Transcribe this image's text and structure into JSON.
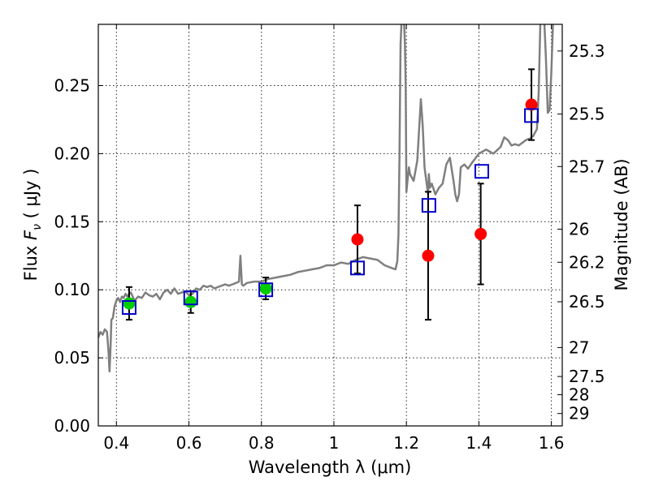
{
  "chart_data": {
    "type": "scatter",
    "title": "",
    "xlabel": "Wavelength  λ (μm)",
    "ylabel_left": {
      "prefix": "Flux  ",
      "symbol": "F",
      "sub": "ν",
      "suffix": "  ( μJy )"
    },
    "ylabel_right": "Magnitude (AB)",
    "xlim": [
      0.35,
      1.63
    ],
    "ylim": [
      0.0,
      0.295
    ],
    "grid": true,
    "x_ticks": [
      {
        "value": 0.4,
        "label": "0.4"
      },
      {
        "value": 0.6,
        "label": "0.6"
      },
      {
        "value": 0.8,
        "label": "0.8"
      },
      {
        "value": 1.0,
        "label": "1"
      },
      {
        "value": 1.2,
        "label": "1.2"
      },
      {
        "value": 1.4,
        "label": "1.4"
      },
      {
        "value": 1.6,
        "label": "1.6"
      }
    ],
    "y_ticks": [
      {
        "value": 0.0,
        "label": "0.00"
      },
      {
        "value": 0.05,
        "label": "0.05"
      },
      {
        "value": 0.1,
        "label": "0.10"
      },
      {
        "value": 0.15,
        "label": "0.15"
      },
      {
        "value": 0.2,
        "label": "0.20"
      },
      {
        "value": 0.25,
        "label": "0.25"
      }
    ],
    "right_ticks": [
      {
        "value": 25.3,
        "label": "25.3"
      },
      {
        "value": 25.5,
        "label": "25.5"
      },
      {
        "value": 25.7,
        "label": "25.7"
      },
      {
        "value": 26.0,
        "label": "26"
      },
      {
        "value": 26.2,
        "label": "26.2"
      },
      {
        "value": 26.5,
        "label": "26.5"
      },
      {
        "value": 27.0,
        "label": "27"
      },
      {
        "value": 27.5,
        "label": "27.5"
      },
      {
        "value": 28.0,
        "label": "28"
      },
      {
        "value": 29.0,
        "label": "29"
      }
    ],
    "series": [
      {
        "kind": "line",
        "color": "#7f7f7f",
        "x": [
          0.35,
          0.356,
          0.362,
          0.368,
          0.374,
          0.378,
          0.381,
          0.384,
          0.386,
          0.39,
          0.395,
          0.4,
          0.405,
          0.41,
          0.415,
          0.42,
          0.425,
          0.43,
          0.435,
          0.44,
          0.45,
          0.46,
          0.47,
          0.48,
          0.49,
          0.5,
          0.51,
          0.52,
          0.53,
          0.54,
          0.55,
          0.56,
          0.57,
          0.58,
          0.59,
          0.6,
          0.61,
          0.62,
          0.63,
          0.64,
          0.65,
          0.66,
          0.67,
          0.68,
          0.69,
          0.7,
          0.71,
          0.72,
          0.73,
          0.738,
          0.742,
          0.746,
          0.75,
          0.76,
          0.78,
          0.8,
          0.82,
          0.84,
          0.86,
          0.88,
          0.9,
          0.92,
          0.94,
          0.96,
          0.98,
          1.0,
          1.02,
          1.04,
          1.06,
          1.08,
          1.1,
          1.12,
          1.14,
          1.16,
          1.17,
          1.175,
          1.178,
          1.181,
          1.184,
          1.187,
          1.19,
          1.193,
          1.196,
          1.198,
          1.2,
          1.203,
          1.207,
          1.21,
          1.22,
          1.23,
          1.24,
          1.245,
          1.25,
          1.255,
          1.26,
          1.262,
          1.265,
          1.27,
          1.28,
          1.29,
          1.3,
          1.31,
          1.32,
          1.33,
          1.335,
          1.34,
          1.345,
          1.35,
          1.36,
          1.37,
          1.38,
          1.4,
          1.42,
          1.44,
          1.46,
          1.47,
          1.48,
          1.49,
          1.5,
          1.51,
          1.52,
          1.53,
          1.54,
          1.55,
          1.56,
          1.565,
          1.57,
          1.575,
          1.58,
          1.585,
          1.59,
          1.595,
          1.6,
          1.605,
          1.61,
          1.615,
          1.62,
          1.63
        ],
        "y": [
          0.065,
          0.069,
          0.067,
          0.071,
          0.069,
          0.055,
          0.04,
          0.06,
          0.078,
          0.079,
          0.088,
          0.092,
          0.094,
          0.091,
          0.095,
          0.094,
          0.097,
          0.095,
          0.097,
          0.098,
          0.092,
          0.095,
          0.094,
          0.098,
          0.096,
          0.095,
          0.097,
          0.093,
          0.098,
          0.1,
          0.097,
          0.101,
          0.097,
          0.098,
          0.099,
          0.096,
          0.097,
          0.101,
          0.1,
          0.103,
          0.102,
          0.103,
          0.101,
          0.102,
          0.103,
          0.104,
          0.103,
          0.104,
          0.105,
          0.106,
          0.125,
          0.104,
          0.103,
          0.105,
          0.106,
          0.106,
          0.108,
          0.109,
          0.11,
          0.111,
          0.113,
          0.114,
          0.115,
          0.116,
          0.118,
          0.118,
          0.12,
          0.119,
          0.122,
          0.124,
          0.123,
          0.122,
          0.118,
          0.116,
          0.115,
          0.121,
          0.14,
          0.2,
          0.28,
          0.3,
          0.3,
          0.3,
          0.28,
          0.25,
          0.172,
          0.18,
          0.19,
          0.185,
          0.18,
          0.195,
          0.24,
          0.22,
          0.19,
          0.18,
          0.17,
          0.185,
          0.175,
          0.178,
          0.17,
          0.175,
          0.178,
          0.192,
          0.197,
          0.18,
          0.17,
          0.165,
          0.17,
          0.19,
          0.192,
          0.189,
          0.193,
          0.2,
          0.203,
          0.2,
          0.205,
          0.212,
          0.21,
          0.206,
          0.207,
          0.206,
          0.208,
          0.21,
          0.211,
          0.213,
          0.218,
          0.245,
          0.3,
          0.3,
          0.3,
          0.27,
          0.23,
          0.232,
          0.26,
          0.3,
          0.3,
          0.3,
          0.3,
          0.3
        ]
      },
      {
        "kind": "points",
        "marker": "circle",
        "color": "#00cc00",
        "x": [
          0.435,
          0.605,
          0.812
        ],
        "y": [
          0.09,
          0.091,
          0.101
        ],
        "yerr": [
          0.012,
          0.008,
          0.008
        ]
      },
      {
        "kind": "points",
        "marker": "circle",
        "color": "#ff0000",
        "x": [
          1.065,
          1.26,
          1.405,
          1.545
        ],
        "y": [
          0.137,
          0.125,
          0.141,
          0.236
        ],
        "yerr": [
          0.025,
          0.047,
          0.037,
          0.026
        ]
      },
      {
        "kind": "points",
        "marker": "open-square",
        "color": "#0000cc",
        "x": [
          0.435,
          0.605,
          0.812,
          1.065,
          1.262,
          1.408,
          1.545
        ],
        "y": [
          0.087,
          0.094,
          0.1,
          0.116,
          0.162,
          0.187,
          0.228
        ]
      }
    ]
  }
}
